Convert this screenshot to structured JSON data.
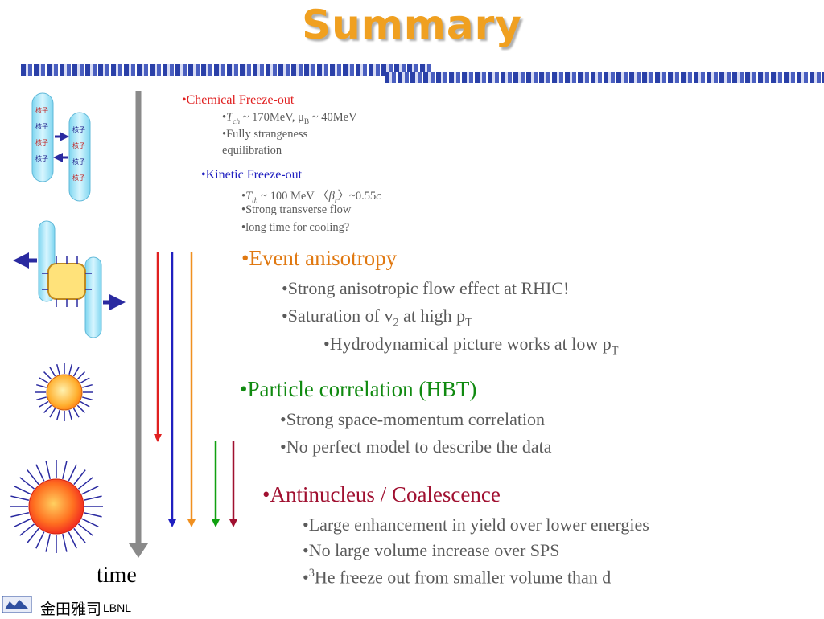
{
  "title": "Summary",
  "chemical": {
    "heading": "•Chemical Freeze-out",
    "t_prefix": "•",
    "t_sym": "T",
    "t_sub": "ch",
    "t_rest1": " ~ 170MeV, μ",
    "t_sub2": "B",
    "t_rest2": " ~ 40MeV",
    "item2a": "•Fully strangeness",
    "item2b": "equilibration"
  },
  "kinetic": {
    "heading": "•Kinetic Freeze-out",
    "t_prefix": "•",
    "t_sym": "T",
    "t_sub": "th",
    "t_rest1": " ~ 100 MeV 〈",
    "beta": "β",
    "beta_sub": "r",
    "t_rest2": "〉~0.55",
    "c": "c",
    "item2": "•Strong transverse flow",
    "item3": "•long time for cooling?"
  },
  "anisotropy": {
    "heading": "•Event anisotropy",
    "item1": "•Strong anisotropic flow effect at RHIC!",
    "item2_pre": "•Saturation of v",
    "item2_sub": "2",
    "item2_mid": " at high p",
    "item2_sub2": "T",
    "item3_pre": "•Hydrodynamical picture works at low p",
    "item3_sub": "T"
  },
  "hbt": {
    "heading": "•Particle correlation (HBT)",
    "item1": "•Strong space-momentum correlation",
    "item2": "•No perfect model to describe the data"
  },
  "antinucleus": {
    "heading": "•Antinucleus / Coalescence",
    "item1": "•Large enhancement in yield over lower energies",
    "item2": "•No large volume increase over SPS",
    "item3_pre": "•",
    "item3_sup": "3",
    "item3_post": "He freeze out from smaller volume than d"
  },
  "time_label": "time",
  "footer": {
    "chinese": "金田雅司",
    "lbnl": "LBNL"
  },
  "colors": {
    "title": "#f0a020",
    "chemical": "#e02020",
    "kinetic": "#2020c0",
    "anisotropy": "#e07810",
    "hbt": "#108a10",
    "antinucleus": "#a01030",
    "body_text": "#5a5a5a"
  }
}
